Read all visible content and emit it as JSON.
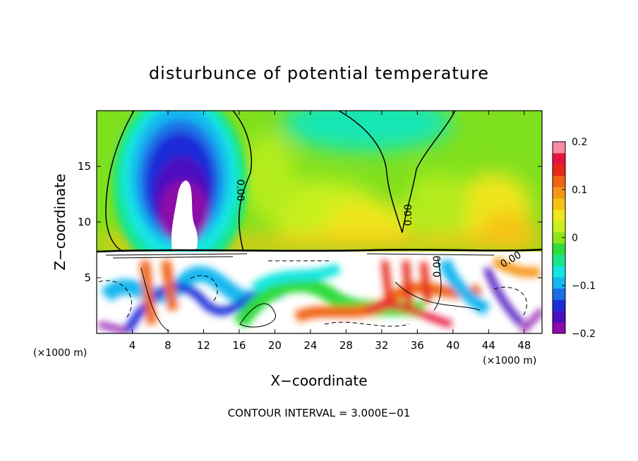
{
  "chart_data": {
    "type": "heatmap",
    "title": "disturbunce of potential temperature",
    "xlabel": "X−coordinate",
    "ylabel": "Z−coordinate",
    "x_unit_left": "(×1000 m)",
    "x_unit_right": "(×1000 m)",
    "xlim": [
      0,
      50
    ],
    "ylim": [
      0,
      20
    ],
    "x_ticks": [
      4,
      8,
      12,
      16,
      20,
      24,
      28,
      32,
      36,
      40,
      44,
      48
    ],
    "y_ticks": [
      5,
      10,
      15
    ],
    "grid": false,
    "colorbar": {
      "range": [
        -0.2,
        0.2
      ],
      "ticks": [
        0.2,
        0.1,
        0,
        -0.1,
        -0.2
      ],
      "tick_labels": [
        "0.2",
        "0.1",
        "0",
        "−0.1",
        "−0.2"
      ],
      "colors": [
        "#8c0aa8",
        "#4b0dc0",
        "#1d2bd8",
        "#1a6fe6",
        "#14b7f0",
        "#14e6e0",
        "#19e68c",
        "#2edc3c",
        "#8ee61a",
        "#c8f01e",
        "#f0e61a",
        "#f5c314",
        "#f59614",
        "#f06414",
        "#e62814",
        "#e6143c",
        "#f58ca0"
      ],
      "position": "right"
    },
    "contour_labels": [
      "0.00",
      "0.00",
      "0.00",
      "0.00"
    ],
    "footer": "CONTOUR INTERVAL = 3.000E−01"
  }
}
